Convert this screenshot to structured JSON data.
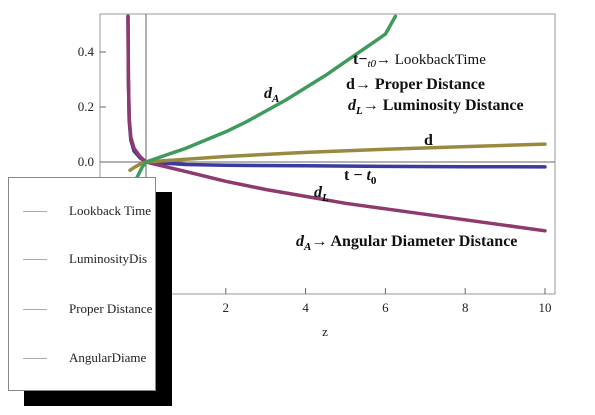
{
  "chart_data": {
    "type": "line",
    "xlabel": "z",
    "ylabel": "",
    "xlim": [
      -0.6,
      10.15
    ],
    "ylim": [
      -0.27,
      0.55
    ],
    "x_ticks": [
      "2",
      "4",
      "6",
      "8",
      "10"
    ],
    "x_tick_values": [
      2,
      4,
      6,
      8,
      10
    ],
    "y_ticks": [
      "0.4",
      "0.2",
      "0.0"
    ],
    "y_tick_values": [
      0.4,
      0.2,
      0.0
    ],
    "series": [
      {
        "name": "Lookback Time",
        "color": "#3b3b9e",
        "points": [
          [
            -0.45,
            0.53
          ],
          [
            -0.44,
            0.3
          ],
          [
            -0.42,
            0.15
          ],
          [
            -0.38,
            0.08
          ],
          [
            -0.3,
            0.04
          ],
          [
            -0.15,
            0.015
          ],
          [
            0,
            0
          ],
          [
            1,
            -0.009
          ],
          [
            2,
            -0.012
          ],
          [
            4,
            -0.014
          ],
          [
            6,
            -0.016
          ],
          [
            8,
            -0.017
          ],
          [
            10,
            -0.018
          ]
        ]
      },
      {
        "name": "Luminosity Distance",
        "color": "#8e3a6e",
        "points": [
          [
            -0.45,
            0.53
          ],
          [
            -0.44,
            0.3
          ],
          [
            -0.42,
            0.16
          ],
          [
            -0.38,
            0.09
          ],
          [
            -0.3,
            0.05
          ],
          [
            -0.15,
            0.02
          ],
          [
            0,
            0
          ],
          [
            1,
            -0.035
          ],
          [
            2,
            -0.07
          ],
          [
            3,
            -0.1
          ],
          [
            4,
            -0.125
          ],
          [
            5,
            -0.15
          ],
          [
            6,
            -0.17
          ],
          [
            7,
            -0.19
          ],
          [
            8,
            -0.21
          ],
          [
            9,
            -0.23
          ],
          [
            10,
            -0.25
          ]
        ]
      },
      {
        "name": "Proper Distance",
        "color": "#9a8a40",
        "points": [
          [
            -0.4,
            -0.03
          ],
          [
            -0.3,
            -0.02
          ],
          [
            -0.15,
            -0.008
          ],
          [
            0,
            0
          ],
          [
            2,
            0.02
          ],
          [
            4,
            0.035
          ],
          [
            6,
            0.046
          ],
          [
            8,
            0.056
          ],
          [
            10,
            0.065
          ]
        ]
      },
      {
        "name": "Angular Diameter Distance",
        "color": "#3f9a5c",
        "points": [
          [
            -0.22,
            -0.055
          ],
          [
            -0.1,
            -0.02
          ],
          [
            0,
            0
          ],
          [
            0.5,
            0.025
          ],
          [
            1,
            0.05
          ],
          [
            1.5,
            0.08
          ],
          [
            2,
            0.11
          ],
          [
            2.5,
            0.145
          ],
          [
            3,
            0.185
          ],
          [
            3.5,
            0.225
          ],
          [
            4,
            0.27
          ],
          [
            4.5,
            0.315
          ],
          [
            5,
            0.365
          ],
          [
            5.5,
            0.415
          ],
          [
            6,
            0.465
          ],
          [
            6.25,
            0.53
          ]
        ]
      }
    ],
    "annotations": {
      "t_t0": "t−t₀",
      "lookback_arrow": "t−",
      "lookback_sub": "t0",
      "lookback_text": "→ LookbackTime",
      "d_proper": "d→ Proper Distance",
      "dL_lum": "→  Luminosity Distance",
      "dA_ang": "→  Angular Diameter Distance",
      "d": "d",
      "dA_symbol": "d",
      "dA_sub": "A",
      "dL_symbol": "d",
      "dL_sub": "L",
      "t_minus": "t − ",
      "t0_symbol": "t",
      "t0_sub": "0"
    },
    "legend": {
      "placement": "bottom-left",
      "entries": [
        "Lookback Time",
        "LuminosityDis",
        "Proper Distance",
        "AngularDiame"
      ]
    },
    "grid": false
  }
}
